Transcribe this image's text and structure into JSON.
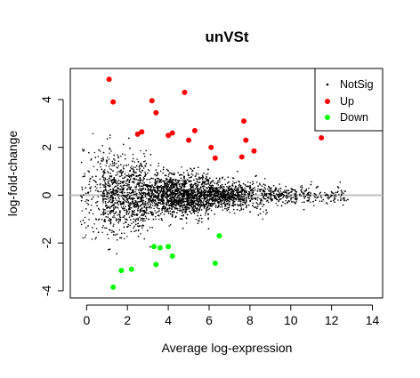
{
  "chart_data": {
    "type": "scatter",
    "title": "unVSt",
    "xlabel": "Average log-expression",
    "ylabel": "log-fold-change",
    "xlim": [
      -0.8,
      14.5
    ],
    "ylim": [
      -4.3,
      5.3
    ],
    "x_ticks": [
      0,
      2,
      4,
      6,
      8,
      10,
      12,
      14
    ],
    "y_ticks": [
      -4,
      -2,
      0,
      2,
      4
    ],
    "grid": false,
    "legend_position": "top-right",
    "reference_line": {
      "y": 0,
      "color": "#bebebe"
    },
    "series": [
      {
        "name": "NotSig",
        "color": "#000000",
        "marker": "small-dot",
        "count": 6500,
        "x_range": [
          -0.3,
          12.8
        ],
        "note": "dense cloud centered on 0 log-fold-change"
      },
      {
        "name": "Up",
        "color": "#ff0000",
        "marker": "filled-circle",
        "points": [
          [
            1.1,
            4.85
          ],
          [
            1.3,
            3.9
          ],
          [
            3.2,
            3.95
          ],
          [
            3.4,
            3.45
          ],
          [
            4.8,
            4.3
          ],
          [
            2.5,
            2.55
          ],
          [
            2.7,
            2.65
          ],
          [
            4.0,
            2.5
          ],
          [
            4.2,
            2.6
          ],
          [
            5.3,
            2.7
          ],
          [
            5.0,
            2.3
          ],
          [
            6.1,
            2.0
          ],
          [
            6.3,
            1.55
          ],
          [
            7.7,
            3.1
          ],
          [
            7.8,
            2.3
          ],
          [
            8.2,
            1.85
          ],
          [
            7.6,
            1.6
          ],
          [
            11.5,
            2.4
          ]
        ]
      },
      {
        "name": "Down",
        "color": "#00ff00",
        "marker": "filled-circle",
        "points": [
          [
            1.3,
            -3.85
          ],
          [
            1.7,
            -3.15
          ],
          [
            2.2,
            -3.1
          ],
          [
            3.3,
            -2.15
          ],
          [
            3.6,
            -2.2
          ],
          [
            3.4,
            -2.9
          ],
          [
            4.0,
            -2.15
          ],
          [
            4.2,
            -2.55
          ],
          [
            6.3,
            -2.85
          ],
          [
            6.5,
            -1.7
          ]
        ]
      }
    ]
  }
}
